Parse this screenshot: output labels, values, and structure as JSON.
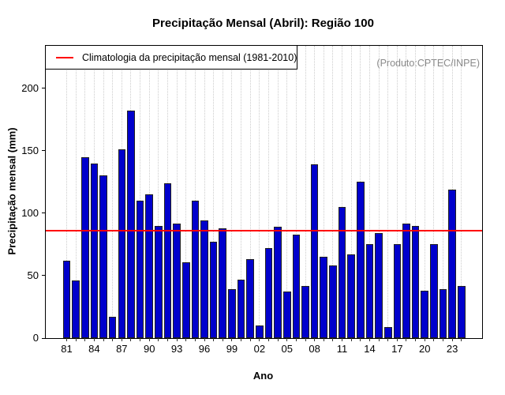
{
  "chart_data": {
    "type": "bar",
    "title": "Precipitação Mensal (Abril): Região 100",
    "xlabel": "Ano",
    "ylabel": "Precipitação mensal (mm)",
    "watermark": "(Produto:CPTEC/INPE)",
    "legend": {
      "label": "Climatologia da precipitação mensal (1981-2010)",
      "line_color": "#ff0000",
      "position": "top-left"
    },
    "x": [
      1981,
      1982,
      1983,
      1984,
      1985,
      1986,
      1987,
      1988,
      1989,
      1990,
      1991,
      1992,
      1993,
      1994,
      1995,
      1996,
      1997,
      1998,
      1999,
      2000,
      2001,
      2002,
      2003,
      2004,
      2005,
      2006,
      2007,
      2008,
      2009,
      2010,
      2011,
      2012,
      2013,
      2014,
      2015,
      2016,
      2017,
      2018,
      2019,
      2020,
      2021,
      2022,
      2023,
      2024
    ],
    "values": [
      62,
      46,
      145,
      140,
      130,
      17,
      151,
      182,
      110,
      115,
      90,
      124,
      92,
      61,
      110,
      94,
      77,
      88,
      39,
      47,
      63,
      10,
      72,
      89,
      37,
      83,
      42,
      139,
      65,
      58,
      105,
      67,
      125,
      75,
      84,
      9,
      75,
      92,
      90,
      38,
      75,
      39,
      119,
      42
    ],
    "climatology_mm": 86,
    "ylim": [
      0,
      234
    ],
    "yticks": [
      0,
      50,
      100,
      150,
      200
    ],
    "xtick_labels": [
      "81",
      "84",
      "87",
      "90",
      "93",
      "96",
      "99",
      "02",
      "05",
      "08",
      "11",
      "14",
      "17",
      "20",
      "23"
    ],
    "xtick_label_step": 3,
    "bar_color": "#0000cc",
    "bar_border_color": "#202020",
    "line_color": "#ff0000",
    "grid": {
      "vertical": true,
      "style": "dotted",
      "color": "#cccccc"
    },
    "legend_border_color": "#000000"
  }
}
